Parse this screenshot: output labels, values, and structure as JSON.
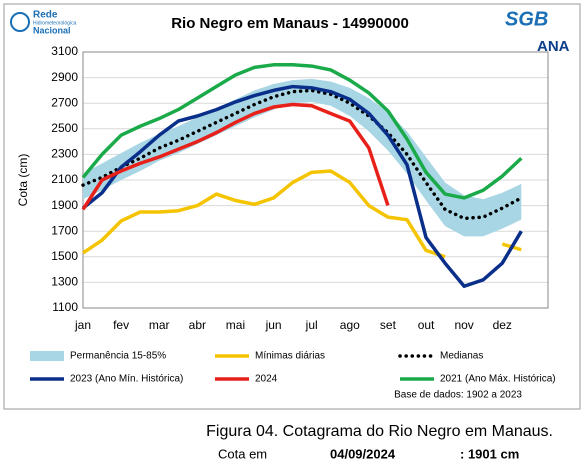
{
  "logos": {
    "rede": "Rede",
    "rede_sub": "Hidrometeorológica",
    "nacional": "Nacional",
    "sgb": "SGB",
    "ana": "ANA"
  },
  "chart_data": {
    "type": "line",
    "title": "Rio Negro em Manaus - 14990000",
    "y_label": "Cota (cm)",
    "categories": [
      "jan",
      null,
      "fev",
      null,
      "mar",
      null,
      "abr",
      null,
      "mai",
      null,
      "jun",
      null,
      "jul",
      null,
      "ago",
      null,
      "set",
      null,
      "out",
      null,
      "nov",
      null,
      "dez",
      null
    ],
    "ylim": [
      1100,
      3100
    ],
    "yticks": [
      1100,
      1300,
      1500,
      1700,
      1900,
      2100,
      2300,
      2500,
      2700,
      2900,
      3100
    ],
    "grid": true,
    "series": [
      {
        "name": "Permanência 15-85%",
        "style": "band",
        "color": "#a9d6e5",
        "values": [
          2150,
          2230,
          2310,
          2390,
          2460,
          2520,
          2590,
          2660,
          2730,
          2800,
          2850,
          2880,
          2890,
          2870,
          2820,
          2740,
          2630,
          2480,
          2280,
          2080,
          1980,
          1950,
          2000,
          2070
        ],
        "lower": [
          1950,
          2020,
          2100,
          2170,
          2250,
          2310,
          2380,
          2450,
          2520,
          2590,
          2650,
          2700,
          2710,
          2680,
          2600,
          2480,
          2330,
          2150,
          1940,
          1740,
          1660,
          1660,
          1720,
          1790
        ]
      },
      {
        "name": "Mínimas diárias",
        "style": "line",
        "color": "#f5c400",
        "values": [
          1530,
          1630,
          1780,
          1850,
          1850,
          1860,
          1900,
          1990,
          1940,
          1910,
          1960,
          2080,
          2160,
          2170,
          2080,
          1900,
          1810,
          1790,
          1550,
          1500,
          null,
          null,
          1600,
          1555
        ]
      },
      {
        "name": "Medianas",
        "style": "dotted",
        "color": "#000000",
        "values": [
          2060,
          2120,
          2200,
          2270,
          2350,
          2410,
          2480,
          2550,
          2620,
          2690,
          2750,
          2790,
          2800,
          2770,
          2700,
          2600,
          2470,
          2300,
          2080,
          1870,
          1800,
          1810,
          1880,
          1960
        ]
      },
      {
        "name": "2023 (Ano Mín. Histórica)",
        "style": "line",
        "color": "#0a2f8a",
        "values": [
          1880,
          2000,
          2200,
          2320,
          2450,
          2560,
          2600,
          2650,
          2710,
          2760,
          2800,
          2830,
          2820,
          2790,
          2730,
          2620,
          2450,
          2220,
          1650,
          1450,
          1270,
          1320,
          1450,
          1700
        ]
      },
      {
        "name": "2024",
        "style": "line",
        "color": "#e8201a",
        "values": [
          1870,
          2100,
          2170,
          2230,
          2280,
          2340,
          2400,
          2470,
          2550,
          2620,
          2670,
          2690,
          2680,
          2620,
          2560,
          2350,
          1901,
          null,
          null,
          null,
          null,
          null,
          null,
          null
        ]
      },
      {
        "name": "2021 (Ano Máx. Histórica)",
        "style": "line",
        "color": "#1aaa4a",
        "values": [
          2120,
          2300,
          2450,
          2520,
          2580,
          2650,
          2740,
          2830,
          2920,
          2980,
          3000,
          3000,
          2990,
          2960,
          2880,
          2780,
          2640,
          2420,
          2160,
          1990,
          1960,
          2020,
          2130,
          2270
        ]
      }
    ],
    "note": "Base de dados: 1902 a 2023"
  },
  "caption": {
    "title": "Figura 04. Cotagrama do Rio Negro em Manaus.",
    "label": "Cota em",
    "date": "04/09/2024",
    "value": ": 1901 cm"
  }
}
